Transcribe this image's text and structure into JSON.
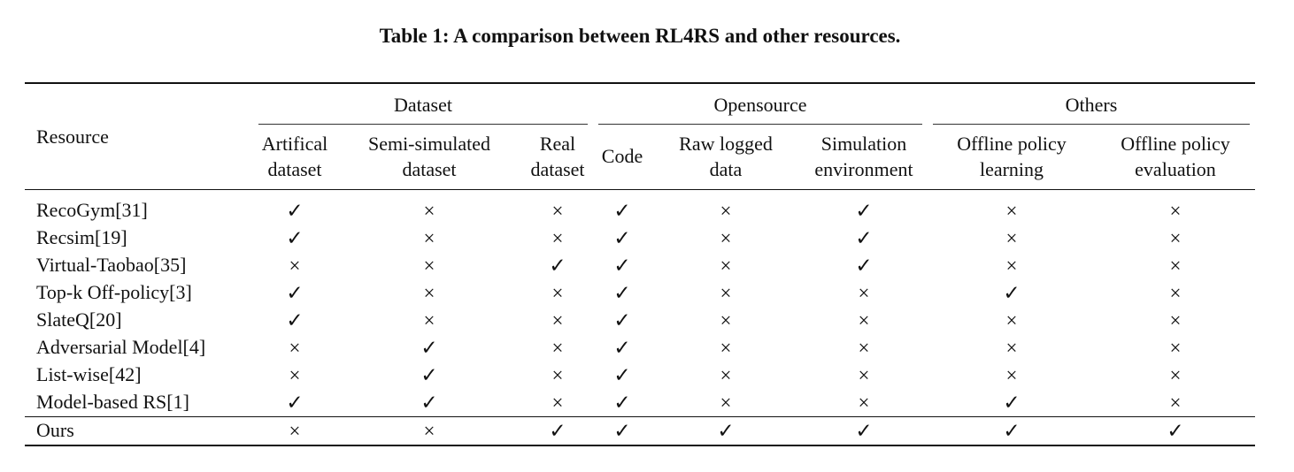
{
  "caption": "Table 1: A comparison between RL4RS and other resources.",
  "table": {
    "resource_header": "Resource",
    "groups": [
      {
        "label": "Dataset",
        "span": 3
      },
      {
        "label": "Opensource",
        "span": 3
      },
      {
        "label": "Others",
        "span": 2
      }
    ],
    "columns": [
      [
        "Artifical",
        "dataset"
      ],
      [
        "Semi-simulated",
        "dataset"
      ],
      [
        "Real",
        "dataset"
      ],
      [
        "Code"
      ],
      [
        "Raw logged",
        "data"
      ],
      [
        "Simulation",
        "environment"
      ],
      [
        "Offline policy",
        "learning"
      ],
      [
        "Offline policy",
        "evaluation"
      ]
    ],
    "rows": [
      {
        "resource": "RecoGym[31]",
        "cells": [
          "✓",
          "×",
          "×",
          "✓",
          "×",
          "✓",
          "×",
          "×"
        ]
      },
      {
        "resource": "Recsim[19]",
        "cells": [
          "✓",
          "×",
          "×",
          "✓",
          "×",
          "✓",
          "×",
          "×"
        ]
      },
      {
        "resource": "Virtual-Taobao[35]",
        "cells": [
          "×",
          "×",
          "✓",
          "✓",
          "×",
          "✓",
          "×",
          "×"
        ]
      },
      {
        "resource": "Top-k Off-policy[3]",
        "cells": [
          "✓",
          "×",
          "×",
          "✓",
          "×",
          "×",
          "✓",
          "×"
        ]
      },
      {
        "resource": "SlateQ[20]",
        "cells": [
          "✓",
          "×",
          "×",
          "✓",
          "×",
          "×",
          "×",
          "×"
        ]
      },
      {
        "resource": "Adversarial Model[4]",
        "cells": [
          "×",
          "✓",
          "×",
          "✓",
          "×",
          "×",
          "×",
          "×"
        ]
      },
      {
        "resource": "List-wise[42]",
        "cells": [
          "×",
          "✓",
          "×",
          "✓",
          "×",
          "×",
          "×",
          "×"
        ]
      },
      {
        "resource": "Model-based RS[1]",
        "cells": [
          "✓",
          "✓",
          "×",
          "✓",
          "×",
          "×",
          "✓",
          "×"
        ]
      }
    ],
    "ours": {
      "resource": "Ours",
      "cells": [
        "×",
        "×",
        "✓",
        "✓",
        "✓",
        "✓",
        "✓",
        "✓"
      ]
    }
  }
}
